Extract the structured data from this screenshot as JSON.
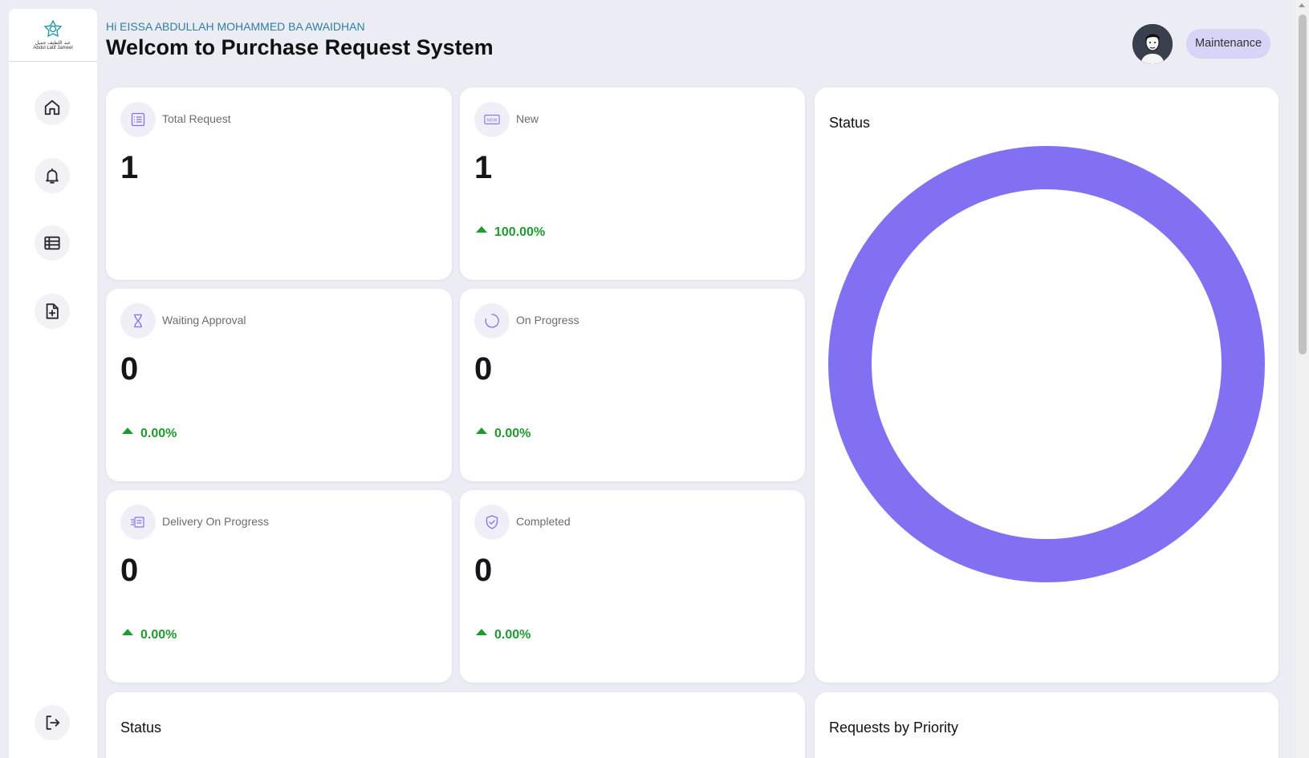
{
  "logo": {
    "arabic": "عبد اللطيف جميل",
    "english": "Abdul Latif Jameel",
    "brand_color": "#1f9aa5"
  },
  "sidebar": {
    "items": [
      {
        "icon": "home-icon"
      },
      {
        "icon": "bell-icon"
      },
      {
        "icon": "list-icon"
      },
      {
        "icon": "add-document-icon"
      }
    ],
    "logout_icon": "logout-icon"
  },
  "header": {
    "greeting": "Hi EISSA ABDULLAH MOHAMMED BA AWAIDHAN",
    "title": "Welcom to Purchase Request System",
    "role": "Maintenance"
  },
  "stats": [
    {
      "label": "Total Request",
      "value": "1",
      "delta": "",
      "icon": "list-icon"
    },
    {
      "label": "New",
      "value": "1",
      "delta": "100.00%",
      "icon": "new-icon"
    },
    {
      "label": "Waiting Approval",
      "value": "0",
      "delta": "0.00%",
      "icon": "hourglass-icon"
    },
    {
      "label": "On Progress",
      "value": "0",
      "delta": "0.00%",
      "icon": "spinner-icon"
    },
    {
      "label": "Delivery On Progress",
      "value": "0",
      "delta": "0.00%",
      "icon": "delivery-icon"
    },
    {
      "label": "Completed",
      "value": "0",
      "delta": "0.00%",
      "icon": "shield-check-icon"
    }
  ],
  "panels": {
    "status_donut_title": "Status",
    "status_bottom_title": "Status",
    "priority_title": "Requests by Priority"
  },
  "chart_data": {
    "type": "pie",
    "title": "Status",
    "series": [
      {
        "values": [
          1
        ]
      }
    ],
    "color": "#8170f2"
  },
  "colors": {
    "accent": "#8170f2",
    "positive": "#1e9a2e",
    "greeting": "#2f7f9f",
    "background": "#ebecf4"
  }
}
